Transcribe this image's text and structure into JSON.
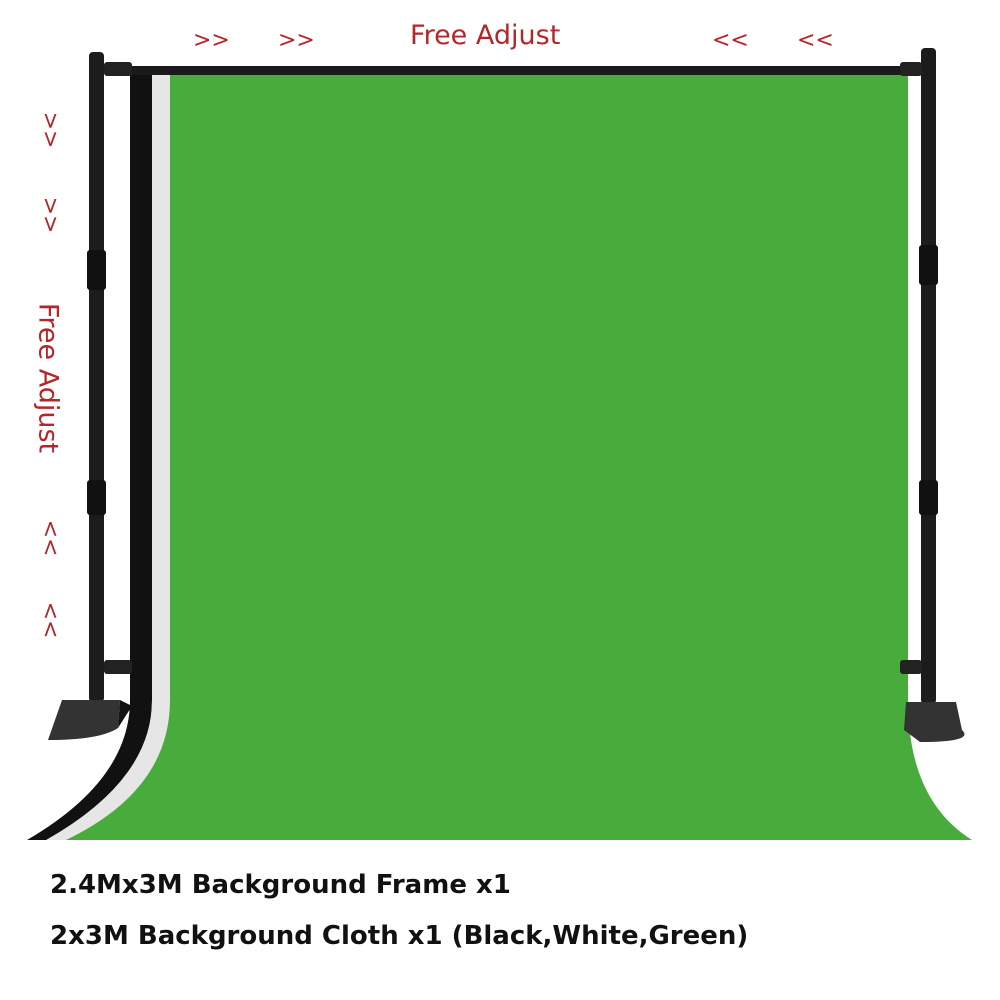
{
  "labels": {
    "horizontal_adjust": "Free Adjust",
    "vertical_adjust": "Free Adjust",
    "arrow_right": ">>",
    "arrow_left": "<<"
  },
  "captions": [
    "2.4Mx3M Background Frame x1",
    "2x3M Background Cloth x1 (Black,White,Green)"
  ],
  "colors": {
    "green_cloth": "#48ac3c",
    "white_cloth": "#e6e6e6",
    "black_cloth": "#111111",
    "label_red": "#b3262a"
  }
}
